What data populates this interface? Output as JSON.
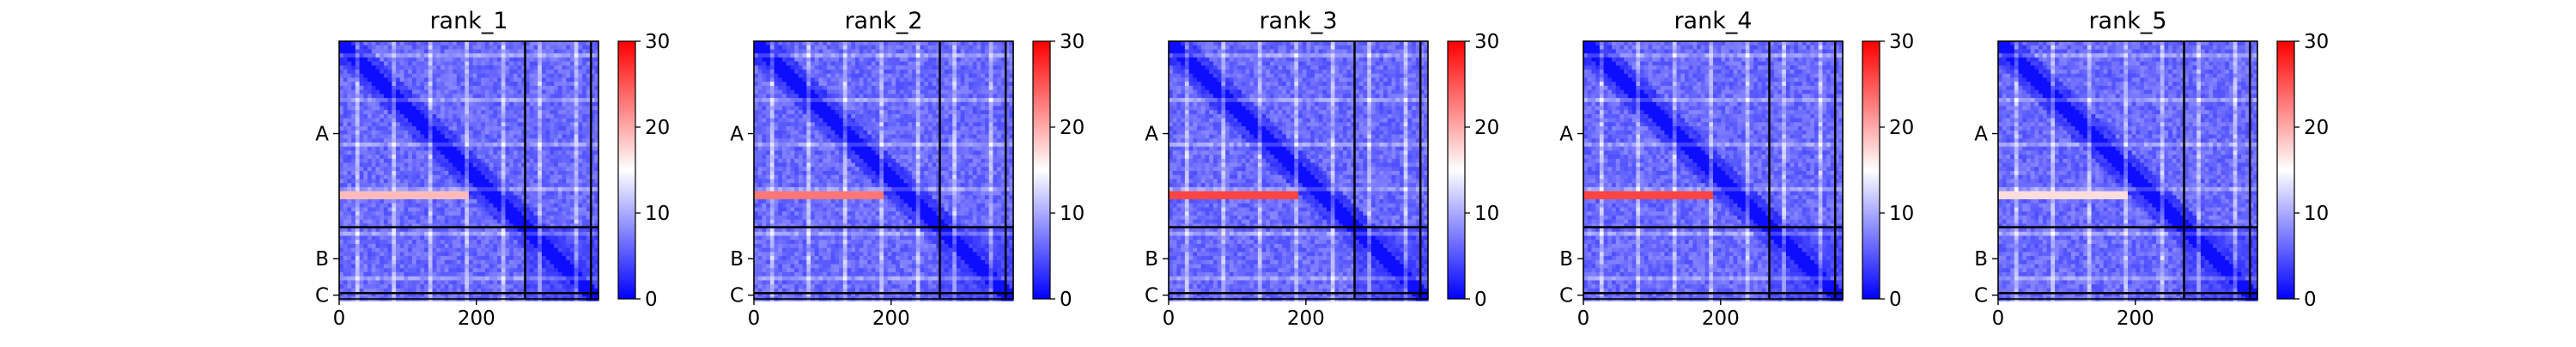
{
  "chart_data": [
    {
      "type": "heatmap",
      "title": "rank_1",
      "x_ticks": [
        "0",
        "200"
      ],
      "x_tick_values": [
        0,
        200
      ],
      "xlim": [
        0,
        378
      ],
      "y_chain_labels": [
        "A",
        "B",
        "C"
      ],
      "chain_boundaries": [
        271,
        367
      ],
      "colorbar": {
        "range": [
          0,
          30
        ],
        "ticks": [
          "0",
          "10",
          "20",
          "30"
        ],
        "colormap": "bwr"
      },
      "strong_row_band": {
        "row": 226,
        "x_start": 0,
        "x_end": 190,
        "value": 19
      }
    },
    {
      "type": "heatmap",
      "title": "rank_2",
      "x_ticks": [
        "0",
        "200"
      ],
      "x_tick_values": [
        0,
        200
      ],
      "xlim": [
        0,
        378
      ],
      "y_chain_labels": [
        "A",
        "B",
        "C"
      ],
      "chain_boundaries": [
        271,
        367
      ],
      "colorbar": {
        "range": [
          0,
          30
        ],
        "ticks": [
          "0",
          "10",
          "20",
          "30"
        ],
        "colormap": "bwr"
      },
      "strong_row_band": {
        "row": 226,
        "x_start": 0,
        "x_end": 190,
        "value": 23
      }
    },
    {
      "type": "heatmap",
      "title": "rank_3",
      "x_ticks": [
        "0",
        "200"
      ],
      "x_tick_values": [
        0,
        200
      ],
      "xlim": [
        0,
        378
      ],
      "y_chain_labels": [
        "A",
        "B",
        "C"
      ],
      "chain_boundaries": [
        271,
        367
      ],
      "colorbar": {
        "range": [
          0,
          30
        ],
        "ticks": [
          "0",
          "10",
          "20",
          "30"
        ],
        "colormap": "bwr"
      },
      "strong_row_band": {
        "row": 226,
        "x_start": 0,
        "x_end": 190,
        "value": 26
      }
    },
    {
      "type": "heatmap",
      "title": "rank_4",
      "x_ticks": [
        "0",
        "200"
      ],
      "x_tick_values": [
        0,
        200
      ],
      "xlim": [
        0,
        378
      ],
      "y_chain_labels": [
        "A",
        "B",
        "C"
      ],
      "chain_boundaries": [
        271,
        367
      ],
      "colorbar": {
        "range": [
          0,
          30
        ],
        "ticks": [
          "0",
          "10",
          "20",
          "30"
        ],
        "colormap": "bwr"
      },
      "strong_row_band": {
        "row": 226,
        "x_start": 0,
        "x_end": 190,
        "value": 26
      }
    },
    {
      "type": "heatmap",
      "title": "rank_5",
      "x_ticks": [
        "0",
        "200"
      ],
      "x_tick_values": [
        0,
        200
      ],
      "xlim": [
        0,
        378
      ],
      "y_chain_labels": [
        "A",
        "B",
        "C"
      ],
      "chain_boundaries": [
        271,
        367
      ],
      "colorbar": {
        "range": [
          0,
          30
        ],
        "ticks": [
          "0",
          "10",
          "20",
          "30"
        ],
        "colormap": "bwr"
      },
      "strong_row_band": {
        "row": 226,
        "x_start": 0,
        "x_end": 190,
        "value": 17
      }
    }
  ]
}
